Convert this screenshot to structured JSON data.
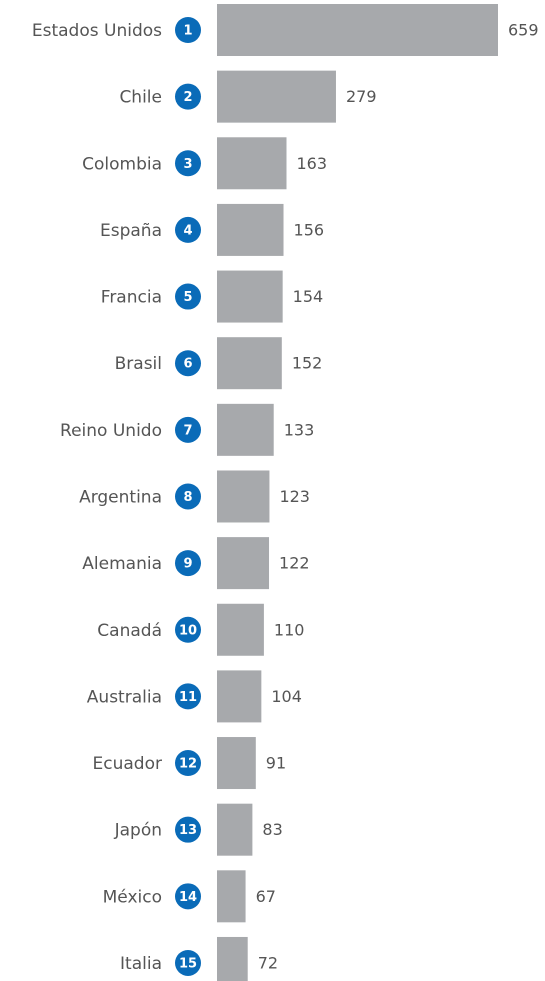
{
  "chart_data": {
    "type": "bar",
    "orientation": "horizontal",
    "categories": [
      "Estados Unidos",
      "Chile",
      "Colombia",
      "España",
      "Francia",
      "Brasil",
      "Reino Unido",
      "Argentina",
      "Alemania",
      "Canadá",
      "Australia",
      "Ecuador",
      "Japón",
      "México",
      "Italia"
    ],
    "ranks": [
      1,
      2,
      3,
      4,
      5,
      6,
      7,
      8,
      9,
      10,
      11,
      12,
      13,
      14,
      15
    ],
    "values": [
      659,
      279,
      163,
      156,
      154,
      152,
      133,
      123,
      122,
      110,
      104,
      91,
      83,
      67,
      72
    ],
    "color": "#a7a9ac",
    "rank_color": "#0a6bb8"
  }
}
